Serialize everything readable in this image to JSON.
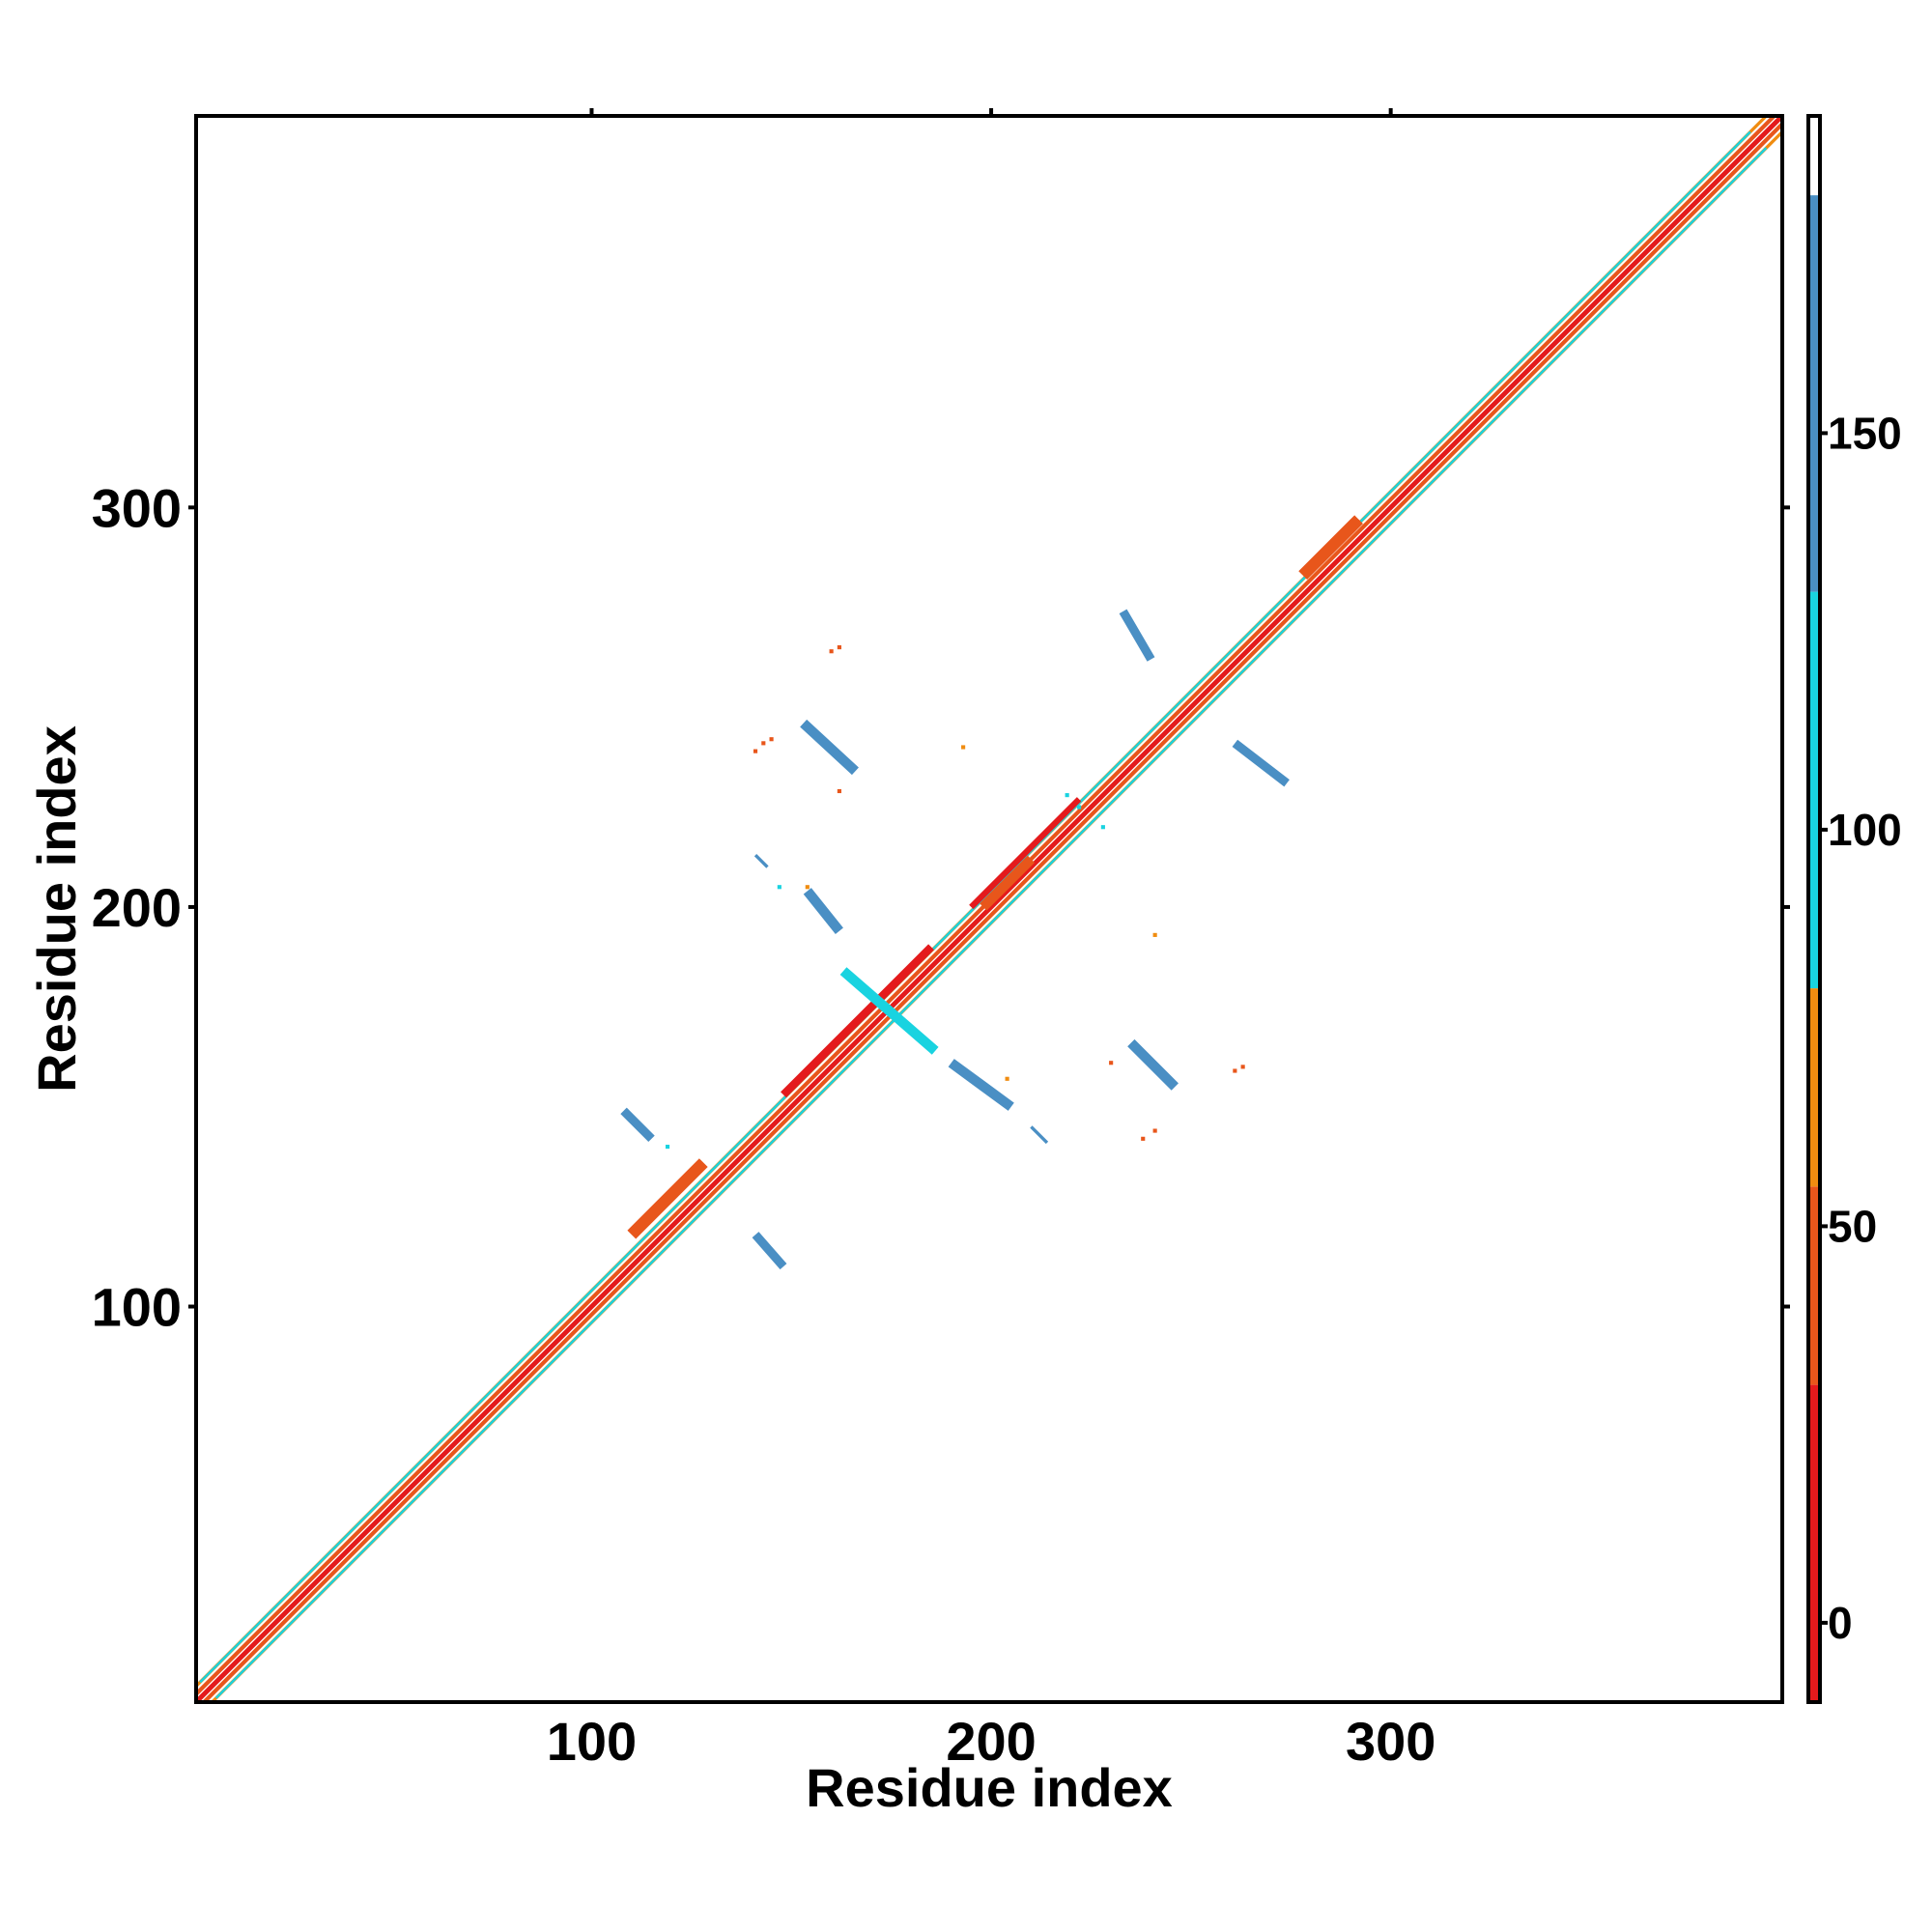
{
  "chart_data": {
    "type": "heatmap",
    "title": "",
    "xlabel": "Residue index",
    "ylabel": "Residue index",
    "xlim": [
      1,
      398
    ],
    "ylim": [
      1,
      398
    ],
    "x_ticks": [
      100,
      200,
      300
    ],
    "y_ticks": [
      100,
      200,
      300
    ],
    "grid": false,
    "colorbar": {
      "range": [
        -10,
        190
      ],
      "ticks": [
        0,
        50,
        100,
        150
      ],
      "bands": [
        {
          "from": -10,
          "to": 30,
          "color": "#e41a1c"
        },
        {
          "from": 30,
          "to": 55,
          "color": "#e8561b"
        },
        {
          "from": 55,
          "to": 80,
          "color": "#f08c10"
        },
        {
          "from": 80,
          "to": 130,
          "color": "#19d3e0"
        },
        {
          "from": 130,
          "to": 180,
          "color": "#4a8fc4"
        },
        {
          "from": 180,
          "to": 190,
          "color": "#ffffff"
        }
      ]
    },
    "segments": [
      {
        "x1": 1,
        "y1": 1,
        "x2": 398,
        "y2": 398,
        "value": 10,
        "width": 1.2
      },
      {
        "x1": 1,
        "y1": 3,
        "x2": 396,
        "y2": 398,
        "value": 45,
        "width": 1.0
      },
      {
        "x1": 3,
        "y1": 1,
        "x2": 398,
        "y2": 396,
        "value": 45,
        "width": 1.0
      },
      {
        "x1": 1,
        "y1": 5,
        "x2": 394,
        "y2": 398,
        "value": 70,
        "width": 0.8
      },
      {
        "x1": 5,
        "y1": 1,
        "x2": 398,
        "y2": 394,
        "value": 70,
        "width": 0.8
      },
      {
        "x1": 2,
        "y1": 6,
        "x2": 390,
        "y2": 394,
        "value": 100,
        "width": 0.6
      },
      {
        "x1": 6,
        "y1": 2,
        "x2": 394,
        "y2": 390,
        "value": 100,
        "width": 0.6
      },
      {
        "x1": 148,
        "y1": 153,
        "x2": 185,
        "y2": 190,
        "value": 5,
        "width": 2.0
      },
      {
        "x1": 195,
        "y1": 200,
        "x2": 222,
        "y2": 227,
        "value": 25,
        "width": 1.5
      },
      {
        "x1": 110,
        "y1": 118,
        "x2": 128,
        "y2": 136,
        "value": 40,
        "width": 3.0
      },
      {
        "x1": 198,
        "y1": 200,
        "x2": 210,
        "y2": 212,
        "value": 40,
        "width": 2.5
      },
      {
        "x1": 278,
        "y1": 283,
        "x2": 292,
        "y2": 297,
        "value": 40,
        "width": 3.0
      },
      {
        "x1": 108,
        "y1": 149,
        "x2": 115,
        "y2": 142,
        "value": 150,
        "width": 2.2
      },
      {
        "x1": 141,
        "y1": 118,
        "x2": 148,
        "y2": 110,
        "value": 140,
        "width": 2.2
      },
      {
        "x1": 153,
        "y1": 246,
        "x2": 166,
        "y2": 234,
        "value": 145,
        "width": 2.5
      },
      {
        "x1": 154,
        "y1": 204,
        "x2": 162,
        "y2": 194,
        "value": 140,
        "width": 2.5
      },
      {
        "x1": 163,
        "y1": 184,
        "x2": 186,
        "y2": 164,
        "value": 120,
        "width": 2.5
      },
      {
        "x1": 190,
        "y1": 161,
        "x2": 205,
        "y2": 150,
        "value": 140,
        "width": 2.5
      },
      {
        "x1": 233,
        "y1": 274,
        "x2": 240,
        "y2": 262,
        "value": 145,
        "width": 2.2
      },
      {
        "x1": 235,
        "y1": 166,
        "x2": 246,
        "y2": 155,
        "value": 145,
        "width": 2.5
      },
      {
        "x1": 261,
        "y1": 241,
        "x2": 274,
        "y2": 231,
        "value": 140,
        "width": 2.2
      },
      {
        "x1": 141,
        "y1": 213,
        "x2": 144,
        "y2": 210,
        "value": 170,
        "width": 0.8
      },
      {
        "x1": 210,
        "y1": 145,
        "x2": 214,
        "y2": 141,
        "value": 170,
        "width": 0.8
      }
    ],
    "points": [
      {
        "x": 160,
        "y": 264,
        "value": 45
      },
      {
        "x": 162,
        "y": 265,
        "value": 50
      },
      {
        "x": 143,
        "y": 241,
        "value": 45
      },
      {
        "x": 145,
        "y": 242,
        "value": 45
      },
      {
        "x": 141,
        "y": 239,
        "value": 45
      },
      {
        "x": 193,
        "y": 240,
        "value": 70
      },
      {
        "x": 162,
        "y": 229,
        "value": 50
      },
      {
        "x": 230,
        "y": 161,
        "value": 50
      },
      {
        "x": 241,
        "y": 193,
        "value": 70
      },
      {
        "x": 238,
        "y": 142,
        "value": 40
      },
      {
        "x": 241,
        "y": 144,
        "value": 45
      },
      {
        "x": 261,
        "y": 159,
        "value": 50
      },
      {
        "x": 263,
        "y": 160,
        "value": 50
      },
      {
        "x": 154,
        "y": 205,
        "value": 70
      },
      {
        "x": 147,
        "y": 205,
        "value": 100
      },
      {
        "x": 222,
        "y": 225,
        "value": 100
      },
      {
        "x": 228,
        "y": 220,
        "value": 100
      },
      {
        "x": 219,
        "y": 228,
        "value": 120
      },
      {
        "x": 204,
        "y": 157,
        "value": 70
      },
      {
        "x": 119,
        "y": 140,
        "value": 100
      }
    ]
  }
}
